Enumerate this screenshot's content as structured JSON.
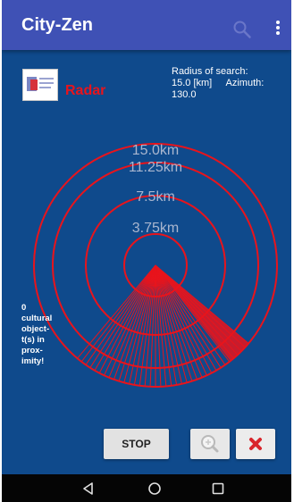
{
  "app": {
    "title": "City-Zen",
    "accent": "#3f51b5",
    "background": "#0f4a8c"
  },
  "toolbar": {
    "search_icon": "search-icon",
    "menu_icon": "more-vert-icon"
  },
  "header": {
    "logo_icon": "app-logo",
    "section_title": "Radar",
    "section_title_color": "#e8141c",
    "radius_label": "Radius of search:",
    "radius_value": "15.0 [km]",
    "azimuth_label": "Azimuth:",
    "azimuth_value": "130.0"
  },
  "radar": {
    "ring_color": "#e8141c",
    "rings": [
      {
        "label": "3.75km"
      },
      {
        "label": "7.5km"
      },
      {
        "label": "11.25km"
      },
      {
        "label": "15.0km"
      }
    ],
    "azimuth_degrees": 130.0
  },
  "proximity": {
    "line1": "0",
    "line2": "cultural",
    "line3": "object-",
    "line4": "t(s) in",
    "line5": "prox-",
    "line6": "imity!"
  },
  "actions": {
    "stop_label": "STOP",
    "zoom_icon": "zoom-in-icon",
    "close_icon": "close-icon",
    "close_color": "#d9262c"
  },
  "system_nav": {
    "back": "back-icon",
    "home": "home-icon",
    "recents": "recents-icon"
  }
}
